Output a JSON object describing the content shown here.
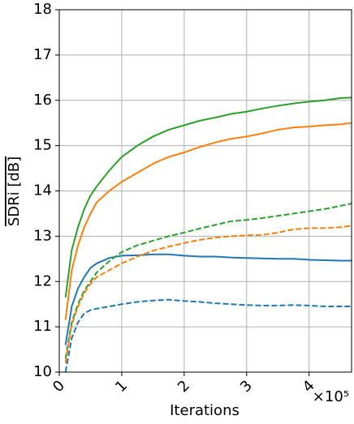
{
  "chart_data": {
    "type": "line",
    "xlabel": "Iterations",
    "ylabel": "SDRi [dB]",
    "x_offset_text": "×10⁵",
    "x": [
      0.1,
      0.2,
      0.3,
      0.4,
      0.5,
      0.6,
      0.8,
      1.0,
      1.25,
      1.5,
      1.75,
      2.0,
      2.25,
      2.5,
      2.75,
      3.0,
      3.25,
      3.5,
      3.75,
      4.0,
      4.25,
      4.5,
      4.68
    ],
    "series": [
      {
        "color": "#2ca02c",
        "dash": "solid",
        "values": [
          11.65,
          12.7,
          13.2,
          13.6,
          13.9,
          14.1,
          14.45,
          14.75,
          15.0,
          15.2,
          15.35,
          15.45,
          15.55,
          15.62,
          15.7,
          15.75,
          15.82,
          15.88,
          15.93,
          15.97,
          16.0,
          16.05,
          16.06
        ]
      },
      {
        "color": "#ff7f0e",
        "dash": "solid",
        "values": [
          11.15,
          12.25,
          12.8,
          13.2,
          13.5,
          13.75,
          14.0,
          14.2,
          14.4,
          14.6,
          14.75,
          14.85,
          14.97,
          15.07,
          15.15,
          15.2,
          15.27,
          15.35,
          15.4,
          15.42,
          15.45,
          15.47,
          15.5
        ]
      },
      {
        "color": "#1f77b4",
        "dash": "solid",
        "values": [
          10.6,
          11.45,
          11.85,
          12.1,
          12.3,
          12.4,
          12.52,
          12.57,
          12.58,
          12.6,
          12.6,
          12.57,
          12.55,
          12.55,
          12.53,
          12.52,
          12.51,
          12.5,
          12.5,
          12.48,
          12.47,
          12.46,
          12.46
        ]
      },
      {
        "color": "#2ca02c",
        "dash": "dashed",
        "values": [
          10.3,
          11.1,
          11.5,
          11.8,
          12.0,
          12.2,
          12.45,
          12.65,
          12.8,
          12.9,
          13.0,
          13.08,
          13.17,
          13.25,
          13.33,
          13.36,
          13.4,
          13.45,
          13.5,
          13.55,
          13.6,
          13.67,
          13.72
        ]
      },
      {
        "color": "#ff7f0e",
        "dash": "dashed",
        "values": [
          10.2,
          11.05,
          11.45,
          11.75,
          11.95,
          12.1,
          12.25,
          12.4,
          12.55,
          12.68,
          12.77,
          12.85,
          12.92,
          12.97,
          13.0,
          13.02,
          13.03,
          13.08,
          13.15,
          13.18,
          13.18,
          13.2,
          13.23
        ]
      },
      {
        "color": "#1f77b4",
        "dash": "dashed",
        "values": [
          10.0,
          10.75,
          11.1,
          11.3,
          11.37,
          11.4,
          11.45,
          11.5,
          11.55,
          11.58,
          11.6,
          11.57,
          11.55,
          11.52,
          11.5,
          11.48,
          11.47,
          11.47,
          11.48,
          11.47,
          11.45,
          11.45,
          11.45
        ]
      }
    ],
    "xlim": [
      0,
      4.68
    ],
    "xticks": [
      0,
      1,
      2,
      3,
      4
    ],
    "ylim": [
      10,
      18
    ],
    "yticks": [
      10,
      11,
      12,
      13,
      14,
      15,
      16,
      17,
      18
    ],
    "grid": true
  }
}
